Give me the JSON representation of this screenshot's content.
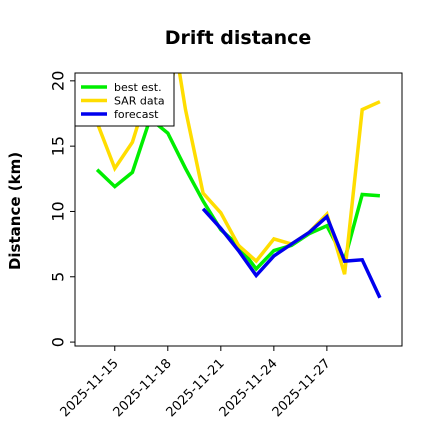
{
  "chart_data": {
    "type": "line",
    "title": "Drift distance",
    "xlabel": "",
    "ylabel": "Distance (km)",
    "ylim": [
      -0.3,
      20.6
    ],
    "xlim": [
      "2025-11-12T18:00",
      "2025-12-01T06:00"
    ],
    "grid": false,
    "legend_position": "top-left",
    "y_ticks": [
      0,
      5,
      10,
      15,
      20
    ],
    "x_ticks": [
      "2025-11-15",
      "2025-11-18",
      "2025-11-21",
      "2025-11-24",
      "2025-11-27"
    ],
    "series": [
      {
        "name": "best est.",
        "color": "#00ee00",
        "points": [
          [
            "2025-11-14T00:00",
            13.2
          ],
          [
            "2025-11-15T00:00",
            11.9
          ],
          [
            "2025-11-16T00:00",
            13.0
          ],
          [
            "2025-11-17T00:00",
            17.1
          ],
          [
            "2025-11-18T00:00",
            16.0
          ],
          [
            "2025-11-19T00:00",
            13.3
          ],
          [
            "2025-11-20T00:00",
            10.8
          ],
          [
            "2025-11-21T00:00",
            8.6
          ],
          [
            "2025-11-22T00:00",
            7.4
          ],
          [
            "2025-11-23T00:00",
            5.6
          ],
          [
            "2025-11-24T00:00",
            7.0
          ],
          [
            "2025-11-25T00:00",
            7.4
          ],
          [
            "2025-11-26T00:00",
            8.3
          ],
          [
            "2025-11-27T00:00",
            8.9
          ],
          [
            "2025-11-28T00:00",
            6.3
          ],
          [
            "2025-11-29T00:00",
            11.3
          ],
          [
            "2025-11-30T00:00",
            11.2
          ]
        ]
      },
      {
        "name": "SAR data",
        "color": "#ffdd00",
        "points": [
          [
            "2025-11-14T00:00",
            16.8
          ],
          [
            "2025-11-15T00:00",
            13.3
          ],
          [
            "2025-11-16T00:00",
            15.3
          ],
          [
            "2025-11-16T12:00",
            17.5
          ],
          [
            "2025-11-17T00:00",
            17.0
          ],
          [
            "2025-11-18T00:00",
            18.2
          ],
          [
            "2025-11-18T12:00",
            22.0
          ],
          [
            "2025-11-19T00:00",
            17.8
          ],
          [
            "2025-11-20T00:00",
            11.4
          ],
          [
            "2025-11-21T00:00",
            9.9
          ],
          [
            "2025-11-22T00:00",
            7.4
          ],
          [
            "2025-11-23T00:00",
            6.2
          ],
          [
            "2025-11-24T00:00",
            7.9
          ],
          [
            "2025-11-25T00:00",
            7.5
          ],
          [
            "2025-11-26T00:00",
            8.4
          ],
          [
            "2025-11-27T00:00",
            9.8
          ],
          [
            "2025-11-28T00:00",
            5.2
          ],
          [
            "2025-11-29T00:00",
            17.8
          ],
          [
            "2025-11-30T00:00",
            18.4
          ]
        ]
      },
      {
        "name": "forecast",
        "color": "#0000ee",
        "points": [
          [
            "2025-11-20T00:00",
            10.2
          ],
          [
            "2025-11-21T00:00",
            8.7
          ],
          [
            "2025-11-22T00:00",
            7.0
          ],
          [
            "2025-11-23T00:00",
            5.1
          ],
          [
            "2025-11-24T00:00",
            6.6
          ],
          [
            "2025-11-25T00:00",
            7.5
          ],
          [
            "2025-11-26T00:00",
            8.4
          ],
          [
            "2025-11-27T00:00",
            9.6
          ],
          [
            "2025-11-28T00:00",
            6.2
          ],
          [
            "2025-11-29T00:00",
            6.3
          ],
          [
            "2025-11-30T00:00",
            3.4
          ]
        ]
      }
    ]
  }
}
